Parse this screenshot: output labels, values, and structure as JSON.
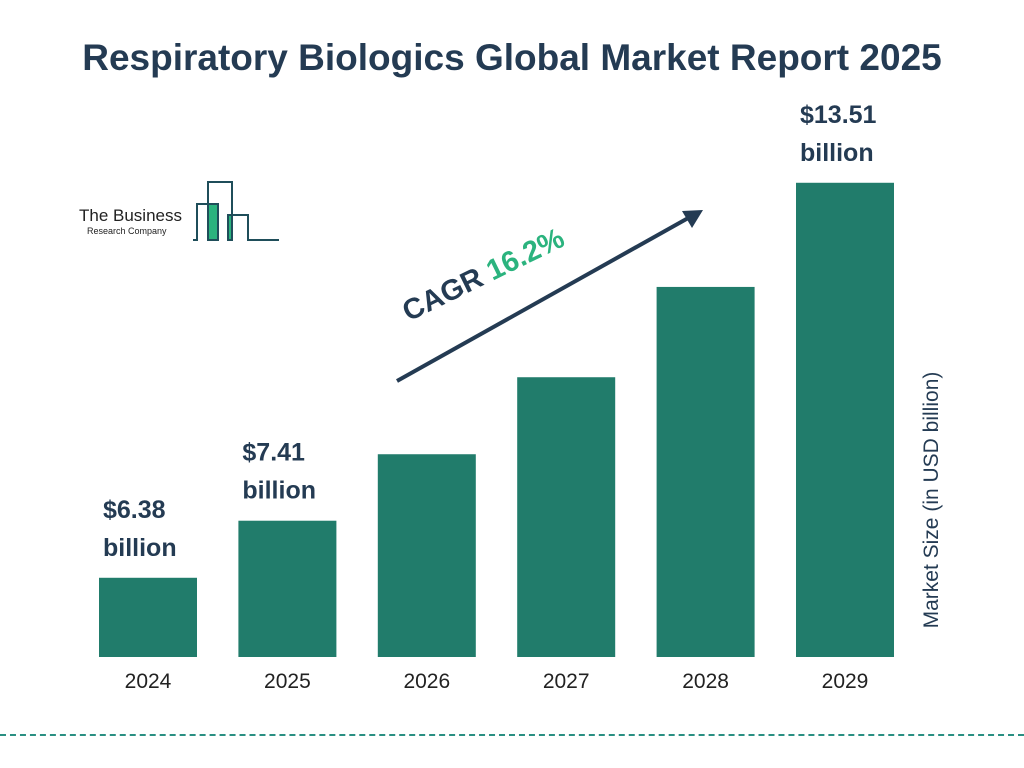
{
  "title": "Respiratory Biologics Global Market Report 2025",
  "logo": {
    "line1": "The Business",
    "line2": "Research Company"
  },
  "cagr": {
    "label": "CAGR",
    "value": "16.2%"
  },
  "colors": {
    "bar": "#217c6b",
    "title": "#243b53",
    "accent": "#2bb37e"
  },
  "chart_data": {
    "type": "bar",
    "categories": [
      "2024",
      "2025",
      "2026",
      "2027",
      "2028",
      "2029"
    ],
    "values": [
      6.38,
      7.41,
      8.61,
      10.0,
      11.63,
      13.51
    ],
    "data_labels": [
      "$6.38 billion",
      "$7.41 billion",
      "",
      "",
      "",
      "$13.51 billion"
    ],
    "title": "Respiratory Biologics Global Market Report 2025",
    "xlabel": "",
    "ylabel": "Market Size (in USD billion)",
    "grid": false
  }
}
